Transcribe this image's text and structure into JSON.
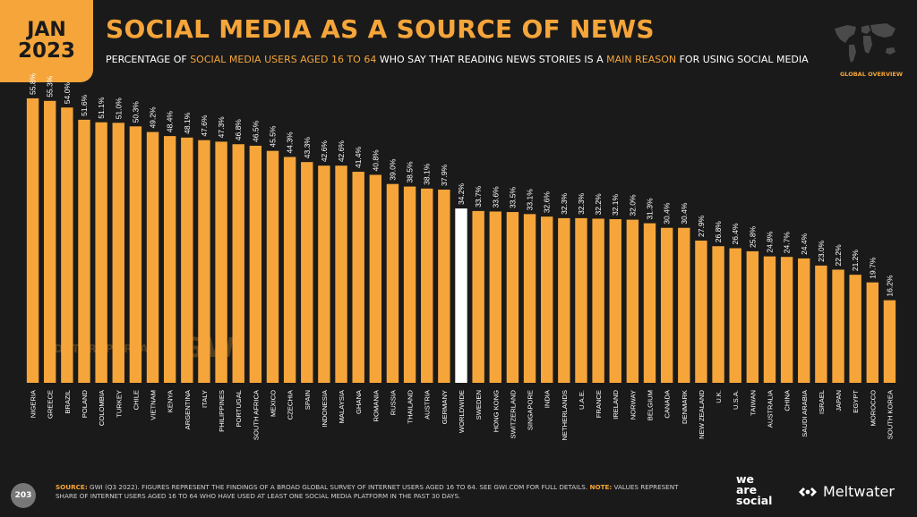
{
  "header": {
    "month": "JAN",
    "year": "2023",
    "title": "SOCIAL MEDIA AS A SOURCE OF NEWS",
    "subtitle_parts": [
      {
        "text": "PERCENTAGE OF ",
        "hl": false
      },
      {
        "text": "SOCIAL MEDIA USERS AGED 16 TO 64",
        "hl": true
      },
      {
        "text": " WHO SAY THAT READING NEWS STORIES IS A ",
        "hl": false
      },
      {
        "text": "MAIN REASON",
        "hl": true
      },
      {
        "text": " FOR USING SOCIAL MEDIA",
        "hl": false
      }
    ],
    "map_caption": "GLOBAL OVERVIEW"
  },
  "watermark": {
    "left": "DATAREPORTAL",
    "right": "GWI."
  },
  "footer": {
    "page_number": "203",
    "source_label": "SOURCE:",
    "source_text": " GWI (Q3 2022). FIGURES REPRESENT THE FINDINGS OF A BROAD GLOBAL SURVEY OF INTERNET USERS AGED 16 TO 64. SEE GWI.COM FOR FULL DETAILS. ",
    "note_label": "NOTE:",
    "note_text": " VALUES REPRESENT SHARE OF INTERNET USERS AGED 16 TO 64 WHO HAVE USED AT LEAST ONE SOCIAL MEDIA PLATFORM IN THE PAST 30 DAYS.",
    "brand_we": "we",
    "brand_are": "are",
    "brand_social": "social",
    "brand_meltwater": "Meltwater"
  },
  "colors": {
    "bar": "#f5a53a",
    "highlight_bar": "#ffffff",
    "background": "#1a1a1a",
    "label_text": "#ffffff"
  },
  "chart_data": {
    "type": "bar",
    "highlight": "WORLDWIDE",
    "value_suffix": "%",
    "ylim": [
      0,
      60
    ],
    "categories": [
      "NIGERIA",
      "GREECE",
      "BRAZIL",
      "POLAND",
      "COLOMBIA",
      "TURKEY",
      "CHILE",
      "VIETNAM",
      "KENYA",
      "ARGENTINA",
      "ITALY",
      "PHILIPPINES",
      "PORTUGAL",
      "SOUTH AFRICA",
      "MEXICO",
      "CZECHIA",
      "SPAIN",
      "INDONESIA",
      "MALAYSIA",
      "GHANA",
      "ROMANIA",
      "RUSSIA",
      "THAILAND",
      "AUSTRIA",
      "GERMANY",
      "WORLDWIDE",
      "SWEDEN",
      "HONG KONG",
      "SWITZERLAND",
      "SINGAPORE",
      "INDIA",
      "NETHERLANDS",
      "U.A.E.",
      "FRANCE",
      "IRELAND",
      "NORWAY",
      "BELGIUM",
      "CANADA",
      "DENMARK",
      "NEW ZEALAND",
      "U.K.",
      "U.S.A.",
      "TAIWAN",
      "AUSTRALIA",
      "CHINA",
      "SAUDI ARABIA",
      "ISRAEL",
      "JAPAN",
      "EGYPT",
      "MOROCCO",
      "SOUTH KOREA"
    ],
    "values": [
      55.8,
      55.3,
      54.0,
      51.6,
      51.1,
      51.0,
      50.3,
      49.2,
      48.4,
      48.1,
      47.6,
      47.3,
      46.8,
      46.5,
      45.5,
      44.3,
      43.3,
      42.6,
      42.6,
      41.4,
      40.8,
      39.0,
      38.5,
      38.1,
      37.9,
      34.2,
      33.7,
      33.6,
      33.5,
      33.1,
      32.6,
      32.3,
      32.3,
      32.2,
      32.1,
      32.0,
      31.3,
      30.4,
      30.4,
      27.9,
      26.8,
      26.4,
      25.8,
      24.8,
      24.7,
      24.4,
      23.0,
      22.2,
      21.2,
      19.7,
      16.2
    ]
  }
}
